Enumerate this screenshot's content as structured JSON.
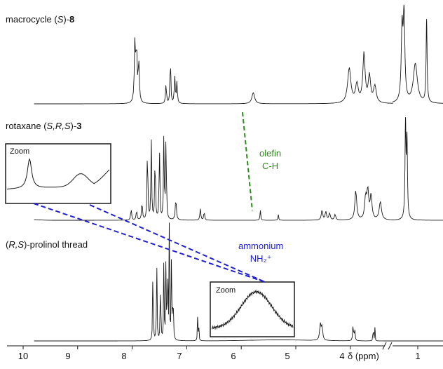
{
  "chart_data": {
    "type": "line",
    "xlabel": "δ (ppm)",
    "x_ticks": [
      "10",
      "9",
      "8",
      "7",
      "6",
      "5",
      "4",
      "1"
    ],
    "x_reversed": true,
    "axis_break": true,
    "series": [
      {
        "name_prefix": "macrocycle (",
        "name_italic": "S",
        "name_suffix": ")-",
        "name_bold": "8",
        "peaks_ppm": [
          7.95,
          7.92,
          7.88,
          7.38,
          7.28,
          7.22,
          7.18,
          5.78,
          4.02,
          3.88,
          3.75,
          3.65,
          3.55,
          1.32,
          1.28,
          1.05,
          0.82
        ]
      },
      {
        "name_prefix": "rotaxane (",
        "name_italic": "S,R,S",
        "name_suffix": ")-",
        "name_bold": "3",
        "peaks_ppm": [
          8.02,
          7.92,
          7.82,
          7.72,
          7.65,
          7.58,
          7.5,
          7.42,
          7.35,
          7.2,
          6.75,
          6.68,
          5.65,
          5.32,
          4.52,
          4.45,
          4.38,
          3.9,
          3.72,
          3.68,
          3.62,
          3.45,
          1.25,
          1.22
        ]
      },
      {
        "name_prefix": "(",
        "name_italic": "R,S",
        "name_suffix": ")-prolinol thread",
        "name_bold": "",
        "peaks_ppm": [
          7.62,
          7.55,
          7.48,
          7.42,
          7.38,
          7.32,
          7.28,
          7.25,
          6.8,
          6.78,
          4.55,
          4.52,
          3.95,
          3.92,
          3.58,
          3.55
        ]
      }
    ],
    "annotations": {
      "olefin": [
        "olefin",
        "C-H"
      ],
      "ammonium": [
        "ammonium",
        "NH₂⁺"
      ],
      "zoom_label": "Zoom"
    },
    "colors": {
      "olefin": "#2a8a1a",
      "ammonium": "#2020d0",
      "trace": "#1a1a1a"
    }
  }
}
